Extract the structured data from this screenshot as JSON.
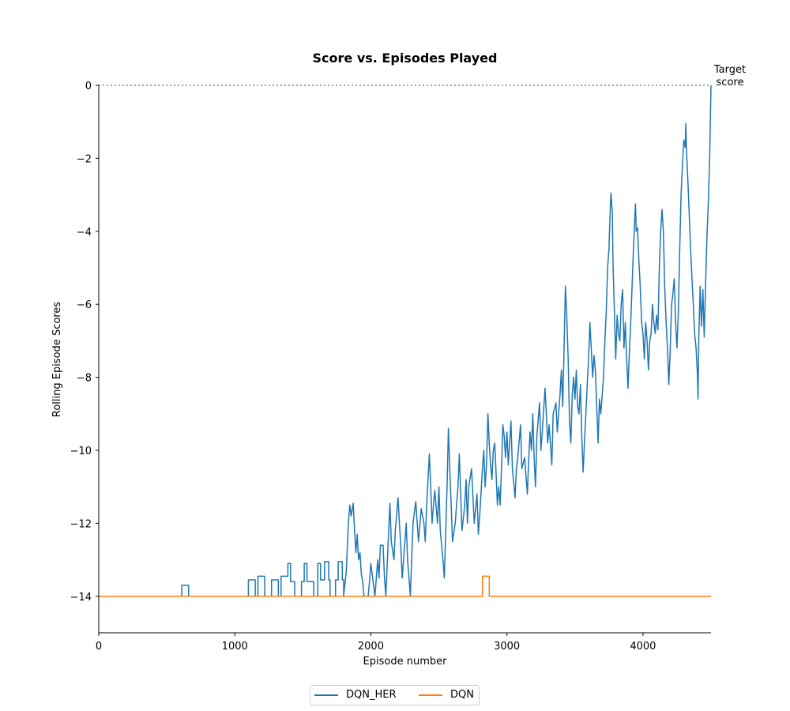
{
  "chart_data": {
    "type": "line",
    "title": "Score vs. Episodes Played",
    "xlabel": "Episode number",
    "ylabel": "Rolling Episode Scores",
    "xlim": [
      0,
      4500
    ],
    "ylim": [
      -15,
      0
    ],
    "xticks": [
      0,
      1000,
      2000,
      3000,
      4000
    ],
    "yticks": [
      0,
      -2,
      -4,
      -6,
      -8,
      -10,
      -12,
      -14
    ],
    "grid": false,
    "legend_position": "bottom-center",
    "annotation": {
      "text_line1": "Target",
      "text_line2": "score",
      "x": 4500,
      "y": 0
    },
    "target_line": {
      "y": 0,
      "color": "#808080",
      "style": "dotted"
    },
    "series": [
      {
        "name": "DQN_HER",
        "color": "#1f77b4",
        "points": [
          [
            0,
            -14
          ],
          [
            610,
            -14
          ],
          [
            610,
            -13.7
          ],
          [
            660,
            -13.7
          ],
          [
            660,
            -14
          ],
          [
            1100,
            -14
          ],
          [
            1100,
            -13.55
          ],
          [
            1150,
            -13.55
          ],
          [
            1150,
            -14
          ],
          [
            1170,
            -14
          ],
          [
            1170,
            -13.45
          ],
          [
            1220,
            -13.45
          ],
          [
            1220,
            -14
          ],
          [
            1270,
            -14
          ],
          [
            1270,
            -13.55
          ],
          [
            1320,
            -13.55
          ],
          [
            1320,
            -14
          ],
          [
            1340,
            -14
          ],
          [
            1340,
            -13.45
          ],
          [
            1390,
            -13.45
          ],
          [
            1390,
            -13.1
          ],
          [
            1410,
            -13.1
          ],
          [
            1410,
            -13.6
          ],
          [
            1440,
            -13.6
          ],
          [
            1440,
            -14
          ],
          [
            1490,
            -14
          ],
          [
            1490,
            -13.6
          ],
          [
            1510,
            -13.6
          ],
          [
            1510,
            -13.1
          ],
          [
            1530,
            -13.1
          ],
          [
            1530,
            -13.6
          ],
          [
            1580,
            -13.6
          ],
          [
            1580,
            -14
          ],
          [
            1610,
            -14
          ],
          [
            1610,
            -13.1
          ],
          [
            1630,
            -13.1
          ],
          [
            1630,
            -13.55
          ],
          [
            1660,
            -13.55
          ],
          [
            1660,
            -13.05
          ],
          [
            1690,
            -13.05
          ],
          [
            1690,
            -13.55
          ],
          [
            1700,
            -13.55
          ],
          [
            1700,
            -14
          ],
          [
            1740,
            -14
          ],
          [
            1740,
            -13.55
          ],
          [
            1760,
            -13.55
          ],
          [
            1760,
            -13.05
          ],
          [
            1790,
            -13.05
          ],
          [
            1790,
            -13.55
          ],
          [
            1800,
            -13.55
          ],
          [
            1800,
            -14
          ],
          [
            1820,
            -13.3
          ],
          [
            1835,
            -12.0
          ],
          [
            1845,
            -11.5
          ],
          [
            1855,
            -11.8
          ],
          [
            1870,
            -11.45
          ],
          [
            1880,
            -12.2
          ],
          [
            1890,
            -12.8
          ],
          [
            1900,
            -12.3
          ],
          [
            1910,
            -13.0
          ],
          [
            1920,
            -12.8
          ],
          [
            1930,
            -13.4
          ],
          [
            1940,
            -13.6
          ],
          [
            1950,
            -14
          ],
          [
            1980,
            -14
          ],
          [
            1990,
            -13.6
          ],
          [
            2000,
            -13.1
          ],
          [
            2015,
            -13.55
          ],
          [
            2030,
            -14
          ],
          [
            2050,
            -13.0
          ],
          [
            2060,
            -13.5
          ],
          [
            2070,
            -12.6
          ],
          [
            2090,
            -12.6
          ],
          [
            2100,
            -13.5
          ],
          [
            2110,
            -14
          ],
          [
            2130,
            -12.3
          ],
          [
            2140,
            -11.45
          ],
          [
            2150,
            -12.5
          ],
          [
            2170,
            -13.0
          ],
          [
            2180,
            -12.2
          ],
          [
            2200,
            -11.3
          ],
          [
            2210,
            -12.0
          ],
          [
            2220,
            -12.6
          ],
          [
            2230,
            -13.5
          ],
          [
            2240,
            -13.0
          ],
          [
            2250,
            -12.5
          ],
          [
            2260,
            -12.0
          ],
          [
            2270,
            -13.0
          ],
          [
            2280,
            -13.5
          ],
          [
            2290,
            -14
          ],
          [
            2300,
            -13.0
          ],
          [
            2310,
            -12.0
          ],
          [
            2330,
            -11.4
          ],
          [
            2350,
            -12.5
          ],
          [
            2370,
            -11.6
          ],
          [
            2390,
            -12.0
          ],
          [
            2400,
            -12.5
          ],
          [
            2410,
            -11.5
          ],
          [
            2430,
            -10.1
          ],
          [
            2440,
            -11.0
          ],
          [
            2450,
            -12.0
          ],
          [
            2460,
            -11.5
          ],
          [
            2470,
            -11.1
          ],
          [
            2490,
            -12.0
          ],
          [
            2500,
            -11.0
          ],
          [
            2510,
            -12.2
          ],
          [
            2530,
            -13.0
          ],
          [
            2540,
            -13.5
          ],
          [
            2560,
            -11.0
          ],
          [
            2570,
            -9.4
          ],
          [
            2580,
            -10.5
          ],
          [
            2590,
            -11.5
          ],
          [
            2600,
            -12.5
          ],
          [
            2620,
            -12.0
          ],
          [
            2640,
            -11.0
          ],
          [
            2650,
            -10.1
          ],
          [
            2660,
            -11.2
          ],
          [
            2670,
            -12.2
          ],
          [
            2690,
            -11.5
          ],
          [
            2700,
            -10.8
          ],
          [
            2710,
            -12.0
          ],
          [
            2720,
            -11.0
          ],
          [
            2740,
            -10.5
          ],
          [
            2760,
            -12.0
          ],
          [
            2780,
            -11.2
          ],
          [
            2790,
            -12.3
          ],
          [
            2800,
            -11.8
          ],
          [
            2820,
            -10.5
          ],
          [
            2830,
            -10.0
          ],
          [
            2840,
            -11.0
          ],
          [
            2850,
            -10.4
          ],
          [
            2860,
            -9.0
          ],
          [
            2870,
            -9.8
          ],
          [
            2880,
            -10.4
          ],
          [
            2890,
            -10.8
          ],
          [
            2900,
            -10.0
          ],
          [
            2910,
            -9.8
          ],
          [
            2920,
            -10.6
          ],
          [
            2930,
            -11.5
          ],
          [
            2940,
            -11.0
          ],
          [
            2950,
            -11.5
          ],
          [
            2960,
            -10.5
          ],
          [
            2970,
            -9.3
          ],
          [
            2980,
            -9.6
          ],
          [
            2990,
            -10.2
          ],
          [
            3000,
            -9.5
          ],
          [
            3010,
            -10.4
          ],
          [
            3020,
            -9.8
          ],
          [
            3030,
            -9.2
          ],
          [
            3040,
            -10.5
          ],
          [
            3050,
            -10.9
          ],
          [
            3060,
            -11.3
          ],
          [
            3070,
            -10.5
          ],
          [
            3080,
            -10.2
          ],
          [
            3100,
            -9.3
          ],
          [
            3110,
            -10.5
          ],
          [
            3130,
            -10.2
          ],
          [
            3150,
            -11.2
          ],
          [
            3160,
            -10.3
          ],
          [
            3170,
            -9.5
          ],
          [
            3180,
            -10.0
          ],
          [
            3190,
            -9.0
          ],
          [
            3200,
            -10.2
          ],
          [
            3210,
            -11.0
          ],
          [
            3220,
            -9.6
          ],
          [
            3240,
            -8.7
          ],
          [
            3250,
            -10.0
          ],
          [
            3260,
            -9.5
          ],
          [
            3280,
            -8.3
          ],
          [
            3290,
            -9.0
          ],
          [
            3300,
            -9.8
          ],
          [
            3310,
            -9.3
          ],
          [
            3330,
            -10.4
          ],
          [
            3340,
            -9.0
          ],
          [
            3360,
            -8.7
          ],
          [
            3370,
            -9.5
          ],
          [
            3390,
            -8.5
          ],
          [
            3400,
            -7.8
          ],
          [
            3410,
            -8.8
          ],
          [
            3420,
            -7.2
          ],
          [
            3430,
            -5.5
          ],
          [
            3440,
            -6.3
          ],
          [
            3450,
            -7.5
          ],
          [
            3460,
            -9.2
          ],
          [
            3470,
            -9.8
          ],
          [
            3480,
            -8.5
          ],
          [
            3490,
            -8.0
          ],
          [
            3500,
            -8.6
          ],
          [
            3510,
            -7.8
          ],
          [
            3520,
            -8.8
          ],
          [
            3530,
            -9.0
          ],
          [
            3540,
            -8.2
          ],
          [
            3550,
            -9.6
          ],
          [
            3560,
            -10.6
          ],
          [
            3570,
            -9.8
          ],
          [
            3580,
            -9.0
          ],
          [
            3590,
            -8.2
          ],
          [
            3600,
            -7.5
          ],
          [
            3610,
            -6.5
          ],
          [
            3620,
            -7.2
          ],
          [
            3630,
            -8.0
          ],
          [
            3640,
            -7.4
          ],
          [
            3650,
            -7.8
          ],
          [
            3660,
            -8.8
          ],
          [
            3670,
            -9.8
          ],
          [
            3680,
            -8.6
          ],
          [
            3690,
            -9.0
          ],
          [
            3700,
            -8.5
          ],
          [
            3710,
            -8.0
          ],
          [
            3720,
            -7.0
          ],
          [
            3730,
            -6.2
          ],
          [
            3740,
            -5.0
          ],
          [
            3750,
            -4.5
          ],
          [
            3760,
            -3.3
          ],
          [
            3765,
            -2.95
          ],
          [
            3775,
            -3.5
          ],
          [
            3780,
            -4.9
          ],
          [
            3790,
            -6.2
          ],
          [
            3800,
            -7.5
          ],
          [
            3810,
            -6.3
          ],
          [
            3820,
            -6.8
          ],
          [
            3830,
            -7.0
          ],
          [
            3840,
            -6.0
          ],
          [
            3850,
            -5.6
          ],
          [
            3860,
            -7.2
          ],
          [
            3870,
            -6.5
          ],
          [
            3880,
            -7.5
          ],
          [
            3890,
            -8.3
          ],
          [
            3900,
            -7.3
          ],
          [
            3910,
            -6.5
          ],
          [
            3920,
            -5.5
          ],
          [
            3930,
            -4.5
          ],
          [
            3940,
            -3.6
          ],
          [
            3945,
            -3.25
          ],
          [
            3950,
            -4.0
          ],
          [
            3960,
            -3.9
          ],
          [
            3970,
            -4.8
          ],
          [
            3980,
            -5.5
          ],
          [
            3990,
            -6.5
          ],
          [
            4000,
            -6.8
          ],
          [
            4010,
            -7.5
          ],
          [
            4020,
            -6.5
          ],
          [
            4030,
            -7.0
          ],
          [
            4040,
            -7.8
          ],
          [
            4050,
            -7.0
          ],
          [
            4060,
            -6.8
          ],
          [
            4070,
            -6.0
          ],
          [
            4080,
            -6.5
          ],
          [
            4090,
            -6.8
          ],
          [
            4100,
            -6.3
          ],
          [
            4110,
            -6.7
          ],
          [
            4120,
            -5.0
          ],
          [
            4130,
            -4.0
          ],
          [
            4140,
            -3.4
          ],
          [
            4150,
            -4.0
          ],
          [
            4160,
            -5.5
          ],
          [
            4170,
            -6.5
          ],
          [
            4180,
            -7.2
          ],
          [
            4190,
            -8.2
          ],
          [
            4200,
            -7.3
          ],
          [
            4210,
            -6.0
          ],
          [
            4220,
            -5.7
          ],
          [
            4230,
            -5.3
          ],
          [
            4240,
            -6.5
          ],
          [
            4250,
            -7.2
          ],
          [
            4260,
            -6.2
          ],
          [
            4270,
            -4.5
          ],
          [
            4280,
            -3.0
          ],
          [
            4290,
            -2.2
          ],
          [
            4300,
            -1.5
          ],
          [
            4310,
            -1.7
          ],
          [
            4315,
            -1.05
          ],
          [
            4320,
            -1.8
          ],
          [
            4330,
            -2.6
          ],
          [
            4340,
            -3.5
          ],
          [
            4350,
            -4.5
          ],
          [
            4360,
            -5.3
          ],
          [
            4370,
            -6.0
          ],
          [
            4380,
            -6.8
          ],
          [
            4390,
            -7.2
          ],
          [
            4400,
            -7.9
          ],
          [
            4405,
            -8.6
          ],
          [
            4410,
            -7.0
          ],
          [
            4420,
            -5.5
          ],
          [
            4430,
            -6.6
          ],
          [
            4440,
            -5.6
          ],
          [
            4450,
            -6.9
          ],
          [
            4460,
            -5.5
          ],
          [
            4470,
            -4.2
          ],
          [
            4480,
            -3.2
          ],
          [
            4490,
            -2.0
          ],
          [
            4500,
            0
          ]
        ]
      },
      {
        "name": "DQN",
        "color": "#ff7f0e",
        "points": [
          [
            0,
            -14
          ],
          [
            2820,
            -14
          ],
          [
            2820,
            -13.45
          ],
          [
            2870,
            -13.45
          ],
          [
            2870,
            -14
          ],
          [
            4500,
            -14
          ]
        ]
      }
    ]
  }
}
